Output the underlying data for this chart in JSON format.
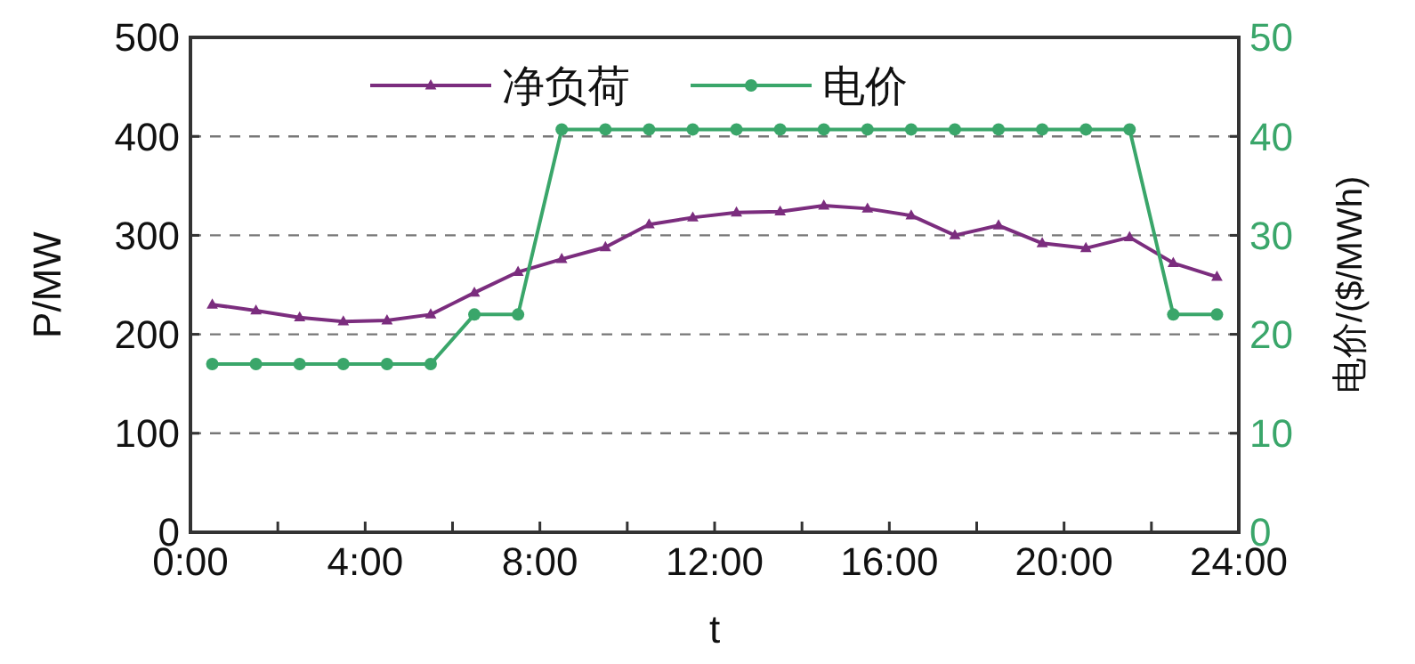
{
  "chart_data": {
    "type": "line",
    "x": [
      0.5,
      1.5,
      2.5,
      3.5,
      4.5,
      5.5,
      6.5,
      7.5,
      8.5,
      9.5,
      10.5,
      11.5,
      12.5,
      13.5,
      14.5,
      15.5,
      16.5,
      17.5,
      18.5,
      19.5,
      20.5,
      21.5,
      22.5,
      23.5
    ],
    "xlim": [
      0,
      24
    ],
    "xticks": [
      {
        "value": 0,
        "label": "0:00"
      },
      {
        "value": 2,
        "label": null
      },
      {
        "value": 4,
        "label": "4:00"
      },
      {
        "value": 6,
        "label": null
      },
      {
        "value": 8,
        "label": "8:00"
      },
      {
        "value": 10,
        "label": null
      },
      {
        "value": 12,
        "label": "12:00"
      },
      {
        "value": 14,
        "label": null
      },
      {
        "value": 16,
        "label": "16:00"
      },
      {
        "value": 18,
        "label": null
      },
      {
        "value": 20,
        "label": "20:00"
      },
      {
        "value": 22,
        "label": null
      },
      {
        "value": 24,
        "label": "24:00"
      }
    ],
    "ylim": [
      0,
      500
    ],
    "yticks": [
      0,
      100,
      200,
      300,
      400,
      500
    ],
    "y2lim": [
      0,
      50
    ],
    "y2ticks": [
      0,
      10,
      20,
      30,
      40,
      50
    ],
    "xlabel": "t",
    "ylabel": "P/MW",
    "y2label": "电价/($/MWh)",
    "grid": "y",
    "legend": "top",
    "series": [
      {
        "name": "净负荷",
        "color": "#7b2d7e",
        "marker": "triangle",
        "values": [
          230,
          224,
          217,
          213,
          214,
          220,
          242,
          263,
          276,
          288,
          311,
          318,
          323,
          324,
          330,
          327,
          320,
          300,
          310,
          292,
          287,
          298,
          272,
          258
        ]
      },
      {
        "name": "电价",
        "color": "#3aa66a",
        "axis": "y2",
        "marker": "circle",
        "values": [
          17,
          17,
          17,
          17,
          17,
          17,
          22,
          22,
          40.7,
          40.7,
          40.7,
          40.7,
          40.7,
          40.7,
          40.7,
          40.7,
          40.7,
          40.7,
          40.7,
          40.7,
          40.7,
          40.7,
          22,
          22
        ]
      }
    ]
  }
}
